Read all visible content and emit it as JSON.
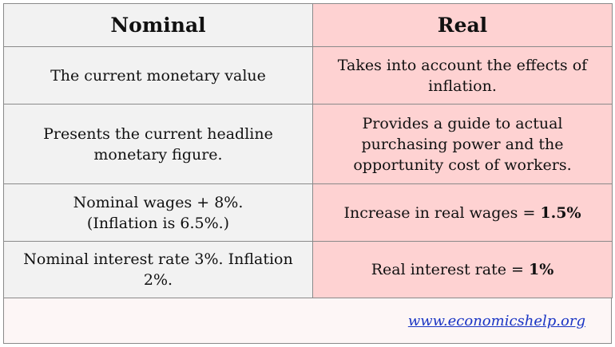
{
  "header": {
    "nominal": "Nominal",
    "real": "Real"
  },
  "rows": [
    {
      "nominal": "The current monetary value",
      "real": "Takes into account the effects of inflation."
    },
    {
      "nominal": "Presents the current headline monetary figure.",
      "real": "Provides a guide to actual purchasing power and the opportunity cost of workers."
    },
    {
      "nominal_line1": "Nominal wages + 8%.",
      "nominal_line2": "(Inflation is 6.5%.)",
      "real_prefix": "Increase in real wages = ",
      "real_value": "1.5%"
    },
    {
      "nominal": "Nominal interest rate 3%. Inflation 2%.",
      "real_prefix": "Real interest rate = ",
      "real_value": "1%"
    }
  ],
  "footer": {
    "link": "www.economicshelp.org"
  },
  "colors": {
    "nominal_column": "#f2f2f2",
    "real_column": "#fed2d2",
    "link": "#1a35c4",
    "border": "#8a8a8a"
  }
}
